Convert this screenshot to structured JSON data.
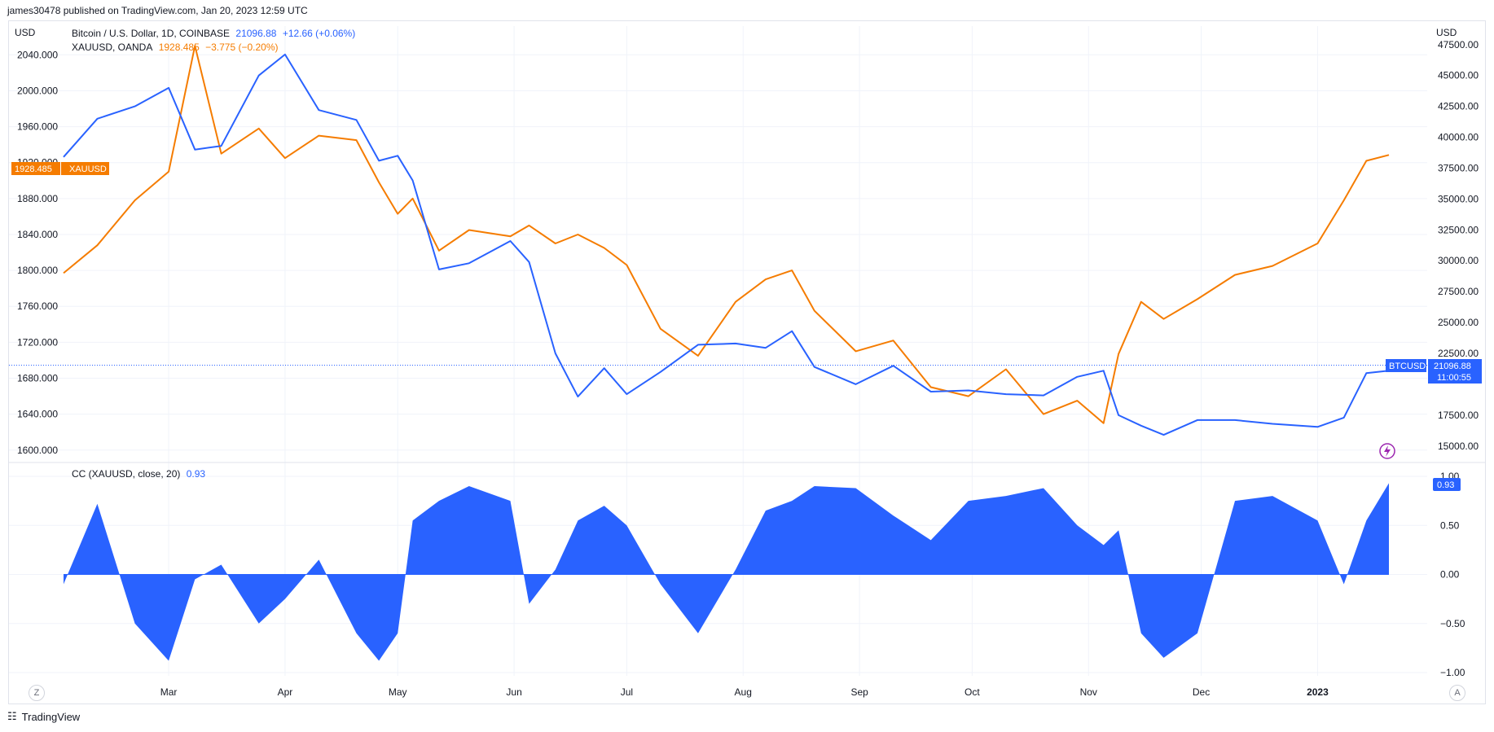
{
  "header": {
    "published": "james30478 published on TradingView.com, Jan 20, 2023 12:59 UTC"
  },
  "top_pane": {
    "left_axis_unit": "USD",
    "right_axis_unit": "USD",
    "legend": {
      "btc": {
        "name": "Bitcoin / U.S. Dollar, 1D, COINBASE",
        "value": "21096.88",
        "change": "+12.66 (+0.06%)"
      },
      "xau": {
        "name": "XAUUSD, OANDA",
        "value": "1928.485",
        "change": "−3.775 (−0.20%)"
      }
    },
    "xau_label": {
      "value": "1928.485",
      "name": "XAUUSD"
    },
    "btc_label": {
      "name": "BTCUSD",
      "value": "21096.88",
      "countdown": "11:00:55"
    },
    "left_ticks": [
      "2040.000",
      "2000.000",
      "1960.000",
      "1920.000",
      "1880.000",
      "1840.000",
      "1800.000",
      "1760.000",
      "1720.000",
      "1680.000",
      "1640.000",
      "1600.000"
    ],
    "right_ticks": [
      "47500.00",
      "45000.00",
      "42500.00",
      "40000.00",
      "37500.00",
      "35000.00",
      "32500.00",
      "30000.00",
      "27500.00",
      "25000.00",
      "22500.00",
      "17500.00",
      "15000.00"
    ]
  },
  "bottom_pane": {
    "legend": {
      "name": "CC (XAUUSD, close, 20)",
      "value": "0.93"
    },
    "right_ticks": [
      "1.00",
      "0.50",
      "0.00",
      "−0.50",
      "−1.00"
    ],
    "last_label": "0.93"
  },
  "x_axis": {
    "labels": [
      "Mar",
      "Apr",
      "May",
      "Jun",
      "Jul",
      "Aug",
      "Sep",
      "Oct",
      "Nov",
      "Dec",
      "2023"
    ]
  },
  "corner_buttons": {
    "left": "Z",
    "right": "A"
  },
  "footer": {
    "brand": "TradingView"
  },
  "colors": {
    "btc": "#2962ff",
    "xau": "#f57c00",
    "cc": "#2962ff",
    "grid": "#f0f3fa"
  },
  "chart_data": [
    {
      "type": "line",
      "title": "Bitcoin / U.S. Dollar, 1D, COINBASE",
      "x": [
        "2022-02-01",
        "2022-02-10",
        "2022-02-20",
        "2022-03-01",
        "2022-03-08",
        "2022-03-15",
        "2022-03-25",
        "2022-04-01",
        "2022-04-10",
        "2022-04-20",
        "2022-04-26",
        "2022-05-01",
        "2022-05-05",
        "2022-05-12",
        "2022-05-20",
        "2022-05-31",
        "2022-06-05",
        "2022-06-12",
        "2022-06-18",
        "2022-06-25",
        "2022-07-01",
        "2022-07-10",
        "2022-07-20",
        "2022-07-30",
        "2022-08-07",
        "2022-08-14",
        "2022-08-20",
        "2022-08-31",
        "2022-09-10",
        "2022-09-20",
        "2022-09-30",
        "2022-10-10",
        "2022-10-20",
        "2022-10-29",
        "2022-11-05",
        "2022-11-09",
        "2022-11-15",
        "2022-11-21",
        "2022-11-30",
        "2022-12-10",
        "2022-12-20",
        "2023-01-01",
        "2023-01-08",
        "2023-01-14",
        "2023-01-20"
      ],
      "series": [
        {
          "name": "BTCUSD",
          "values": [
            38400,
            41500,
            42500,
            44000,
            39000,
            39300,
            45000,
            46700,
            42200,
            41400,
            38100,
            38500,
            36500,
            29300,
            29800,
            31600,
            29900,
            22500,
            19000,
            21300,
            19200,
            21000,
            23200,
            23300,
            22950,
            24300,
            21400,
            20000,
            21500,
            19400,
            19500,
            19200,
            19100,
            20600,
            21100,
            17500,
            16650,
            15900,
            17100,
            17100,
            16800,
            16550,
            17300,
            20900,
            21096.88
          ]
        }
      ],
      "ylim": [
        13800,
        49000
      ]
    },
    {
      "type": "line",
      "title": "XAUUSD, OANDA",
      "x": [
        "2022-02-01",
        "2022-02-10",
        "2022-02-20",
        "2022-03-01",
        "2022-03-08",
        "2022-03-15",
        "2022-03-25",
        "2022-04-01",
        "2022-04-10",
        "2022-04-20",
        "2022-04-26",
        "2022-05-01",
        "2022-05-05",
        "2022-05-12",
        "2022-05-20",
        "2022-05-31",
        "2022-06-05",
        "2022-06-12",
        "2022-06-18",
        "2022-06-25",
        "2022-07-01",
        "2022-07-10",
        "2022-07-20",
        "2022-07-30",
        "2022-08-07",
        "2022-08-14",
        "2022-08-20",
        "2022-08-31",
        "2022-09-10",
        "2022-09-20",
        "2022-09-30",
        "2022-10-10",
        "2022-10-20",
        "2022-10-29",
        "2022-11-05",
        "2022-11-09",
        "2022-11-15",
        "2022-11-21",
        "2022-11-30",
        "2022-12-10",
        "2022-12-20",
        "2023-01-01",
        "2023-01-08",
        "2023-01-14",
        "2023-01-20"
      ],
      "series": [
        {
          "name": "XAUUSD",
          "values": [
            1797,
            1828,
            1878,
            1910,
            2050,
            1930,
            1958,
            1925,
            1950,
            1945,
            1898,
            1863,
            1880,
            1822,
            1845,
            1838,
            1850,
            1830,
            1840,
            1825,
            1806,
            1735,
            1705,
            1765,
            1790,
            1800,
            1755,
            1710,
            1722,
            1670,
            1660,
            1690,
            1640,
            1655,
            1630,
            1707,
            1765,
            1746,
            1768,
            1795,
            1805,
            1830,
            1878,
            1922,
            1928.485
          ]
        }
      ],
      "ylim": [
        1588,
        2072
      ]
    },
    {
      "type": "area",
      "title": "CC (XAUUSD, close, 20)",
      "x": [
        "2022-02-01",
        "2022-02-10",
        "2022-02-20",
        "2022-03-01",
        "2022-03-08",
        "2022-03-15",
        "2022-03-25",
        "2022-04-01",
        "2022-04-10",
        "2022-04-20",
        "2022-04-26",
        "2022-05-01",
        "2022-05-05",
        "2022-05-12",
        "2022-05-20",
        "2022-05-31",
        "2022-06-05",
        "2022-06-12",
        "2022-06-18",
        "2022-06-25",
        "2022-07-01",
        "2022-07-10",
        "2022-07-20",
        "2022-07-30",
        "2022-08-07",
        "2022-08-14",
        "2022-08-20",
        "2022-08-31",
        "2022-09-10",
        "2022-09-20",
        "2022-09-30",
        "2022-10-10",
        "2022-10-20",
        "2022-10-29",
        "2022-11-05",
        "2022-11-09",
        "2022-11-15",
        "2022-11-21",
        "2022-11-30",
        "2022-12-10",
        "2022-12-20",
        "2023-01-01",
        "2023-01-08",
        "2023-01-14",
        "2023-01-20"
      ],
      "series": [
        {
          "name": "CC",
          "values": [
            -0.1,
            0.72,
            -0.5,
            -0.88,
            -0.05,
            0.1,
            -0.5,
            -0.25,
            0.15,
            -0.6,
            -0.88,
            -0.6,
            0.55,
            0.75,
            0.9,
            0.75,
            -0.3,
            0.05,
            0.55,
            0.7,
            0.5,
            -0.1,
            -0.6,
            0.05,
            0.65,
            0.75,
            0.9,
            0.88,
            0.6,
            0.35,
            0.75,
            0.8,
            0.88,
            0.5,
            0.3,
            0.45,
            -0.6,
            -0.85,
            -0.6,
            0.75,
            0.8,
            0.55,
            -0.1,
            0.55,
            0.93
          ]
        }
      ],
      "ylim": [
        -1.0,
        1.0
      ]
    }
  ]
}
